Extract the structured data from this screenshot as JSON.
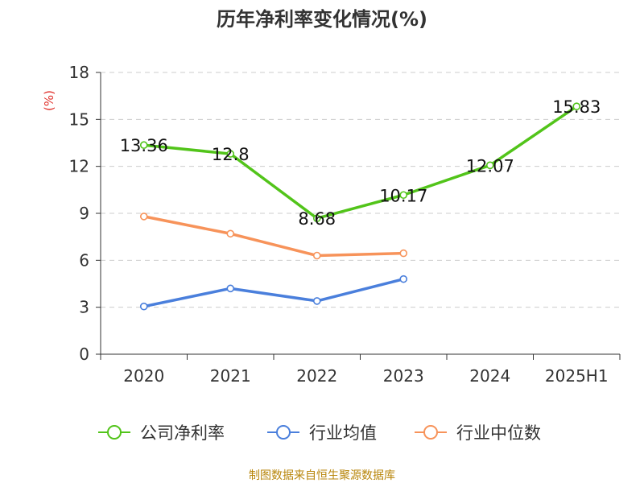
{
  "chart_data": {
    "type": "line",
    "title": "历年净利率变化情况(%)",
    "ylabel": "(%)",
    "categories": [
      "2020",
      "2021",
      "2022",
      "2023",
      "2024",
      "2025H1"
    ],
    "ylim": [
      0,
      18
    ],
    "yticks": [
      0,
      3,
      6,
      9,
      12,
      15,
      18
    ],
    "grid": true,
    "legend_position": "bottom",
    "series": [
      {
        "name": "公司净利率",
        "color": "#52c41a",
        "values": [
          13.36,
          12.8,
          8.68,
          10.17,
          12.07,
          15.83
        ],
        "labels": [
          "13.36",
          "12.8",
          "8.68",
          "10.17",
          "12.07",
          "15.83"
        ]
      },
      {
        "name": "行业均值",
        "color": "#4a7fdc",
        "values": [
          3.05,
          4.2,
          3.4,
          4.8,
          null,
          null
        ]
      },
      {
        "name": "行业中位数",
        "color": "#f7935a",
        "values": [
          8.8,
          7.7,
          6.3,
          6.45,
          null,
          null
        ]
      }
    ]
  },
  "source_note": "制图数据来自恒生聚源数据库"
}
